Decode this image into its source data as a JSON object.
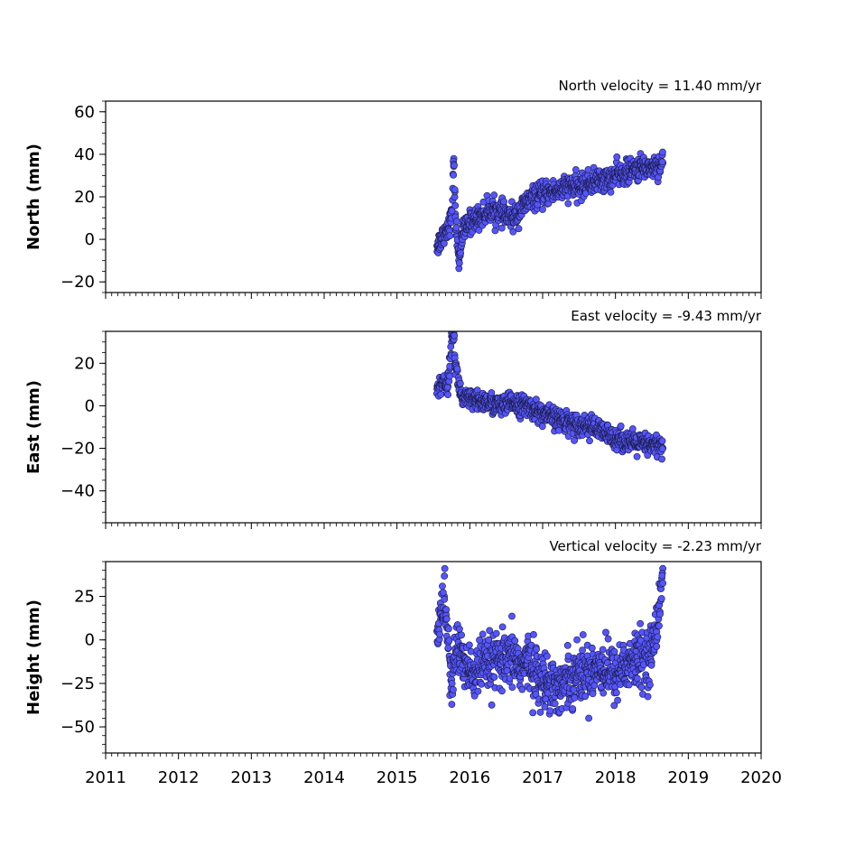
{
  "chart_data": {
    "type": "scatter",
    "x_axis": {
      "xlim": [
        2011,
        2020
      ],
      "ticks": [
        2011,
        2012,
        2013,
        2014,
        2015,
        2016,
        2017,
        2018,
        2019,
        2020
      ],
      "tick_labels": [
        "2011",
        "2012",
        "2013",
        "2014",
        "2015",
        "2016",
        "2017",
        "2018",
        "2019",
        "2020"
      ],
      "minor_ticks_per_year": 12
    },
    "marker_color": "#5555ff",
    "marker_edge_color": "#1a1a40",
    "grid": false,
    "panels": [
      {
        "id": "north",
        "ylabel": "North (mm)",
        "velocity_text": "North velocity = 11.40 mm/yr",
        "ylim": [
          -25,
          65
        ],
        "yticks": [
          -20,
          0,
          20,
          40,
          60
        ],
        "ytick_labels": [
          "−20",
          "0",
          "20",
          "40",
          "60"
        ],
        "minor_step": 5,
        "x": [
          2015.55,
          2015.6,
          2015.65,
          2015.7,
          2015.75,
          2015.78,
          2015.8,
          2015.85,
          2015.9,
          2016.0,
          2016.1,
          2016.2,
          2016.3,
          2016.4,
          2016.5,
          2016.6,
          2016.7,
          2016.8,
          2016.9,
          2017.0,
          2017.1,
          2017.2,
          2017.3,
          2017.4,
          2017.5,
          2017.6,
          2017.7,
          2017.8,
          2017.9,
          2018.0,
          2018.1,
          2018.2,
          2018.3,
          2018.4,
          2018.5,
          2018.6,
          2018.65
        ],
        "y": [
          -3,
          0,
          3,
          6,
          10,
          38,
          12,
          -10,
          3,
          8,
          10,
          12,
          14,
          13,
          11,
          10,
          14,
          18,
          20,
          21,
          22,
          23,
          24,
          25,
          24,
          26,
          27,
          28,
          28,
          30,
          31,
          32,
          33,
          34,
          34,
          35,
          36
        ],
        "spread": 4.5
      },
      {
        "id": "east",
        "ylabel": "East (mm)",
        "velocity_text": "East velocity = -9.43 mm/yr",
        "ylim": [
          -55,
          35
        ],
        "yticks": [
          -40,
          -20,
          0,
          20
        ],
        "ytick_labels": [
          "−40",
          "−20",
          "0",
          "20"
        ],
        "minor_step": 5,
        "x": [
          2015.55,
          2015.6,
          2015.65,
          2015.7,
          2015.75,
          2015.78,
          2015.8,
          2015.85,
          2015.9,
          2016.0,
          2016.1,
          2016.2,
          2016.3,
          2016.4,
          2016.5,
          2016.6,
          2016.7,
          2016.8,
          2016.9,
          2017.0,
          2017.1,
          2017.2,
          2017.3,
          2017.4,
          2017.5,
          2017.6,
          2017.7,
          2017.8,
          2017.9,
          2018.0,
          2018.1,
          2018.2,
          2018.3,
          2018.4,
          2018.5,
          2018.6,
          2018.65
        ],
        "y": [
          8,
          10,
          12,
          9,
          30,
          34,
          20,
          10,
          3,
          3,
          2,
          2,
          1,
          0,
          0,
          2,
          0,
          0,
          -2,
          -4,
          -5,
          -6,
          -7,
          -8,
          -9,
          -9,
          -10,
          -12,
          -14,
          -15,
          -16,
          -17,
          -18,
          -18,
          -19,
          -18,
          -20
        ],
        "spread": 4.0
      },
      {
        "id": "height",
        "ylabel": "Height (mm)",
        "velocity_text": "Vertical velocity = -2.23 mm/yr",
        "ylim": [
          -65,
          45
        ],
        "yticks": [
          -50,
          -25,
          0,
          25
        ],
        "ytick_labels": [
          "−50",
          "−25",
          "0",
          "25"
        ],
        "minor_step": 5,
        "x": [
          2015.55,
          2015.6,
          2015.65,
          2015.7,
          2015.75,
          2015.8,
          2015.9,
          2016.0,
          2016.1,
          2016.2,
          2016.3,
          2016.4,
          2016.5,
          2016.6,
          2016.7,
          2016.8,
          2016.9,
          2017.0,
          2017.1,
          2017.2,
          2017.3,
          2017.4,
          2017.5,
          2017.6,
          2017.7,
          2017.8,
          2017.9,
          2018.0,
          2018.1,
          2018.2,
          2018.3,
          2018.4,
          2018.5,
          2018.6,
          2018.65
        ],
        "y": [
          5,
          12,
          25,
          0,
          -30,
          -5,
          -10,
          -20,
          -18,
          -15,
          -14,
          -12,
          -14,
          -10,
          -16,
          -12,
          -18,
          -25,
          -22,
          -28,
          -25,
          -20,
          -18,
          -20,
          -16,
          -15,
          -18,
          -20,
          -15,
          -14,
          -12,
          -10,
          -8,
          20,
          41
        ],
        "spread": 13.0
      }
    ]
  }
}
